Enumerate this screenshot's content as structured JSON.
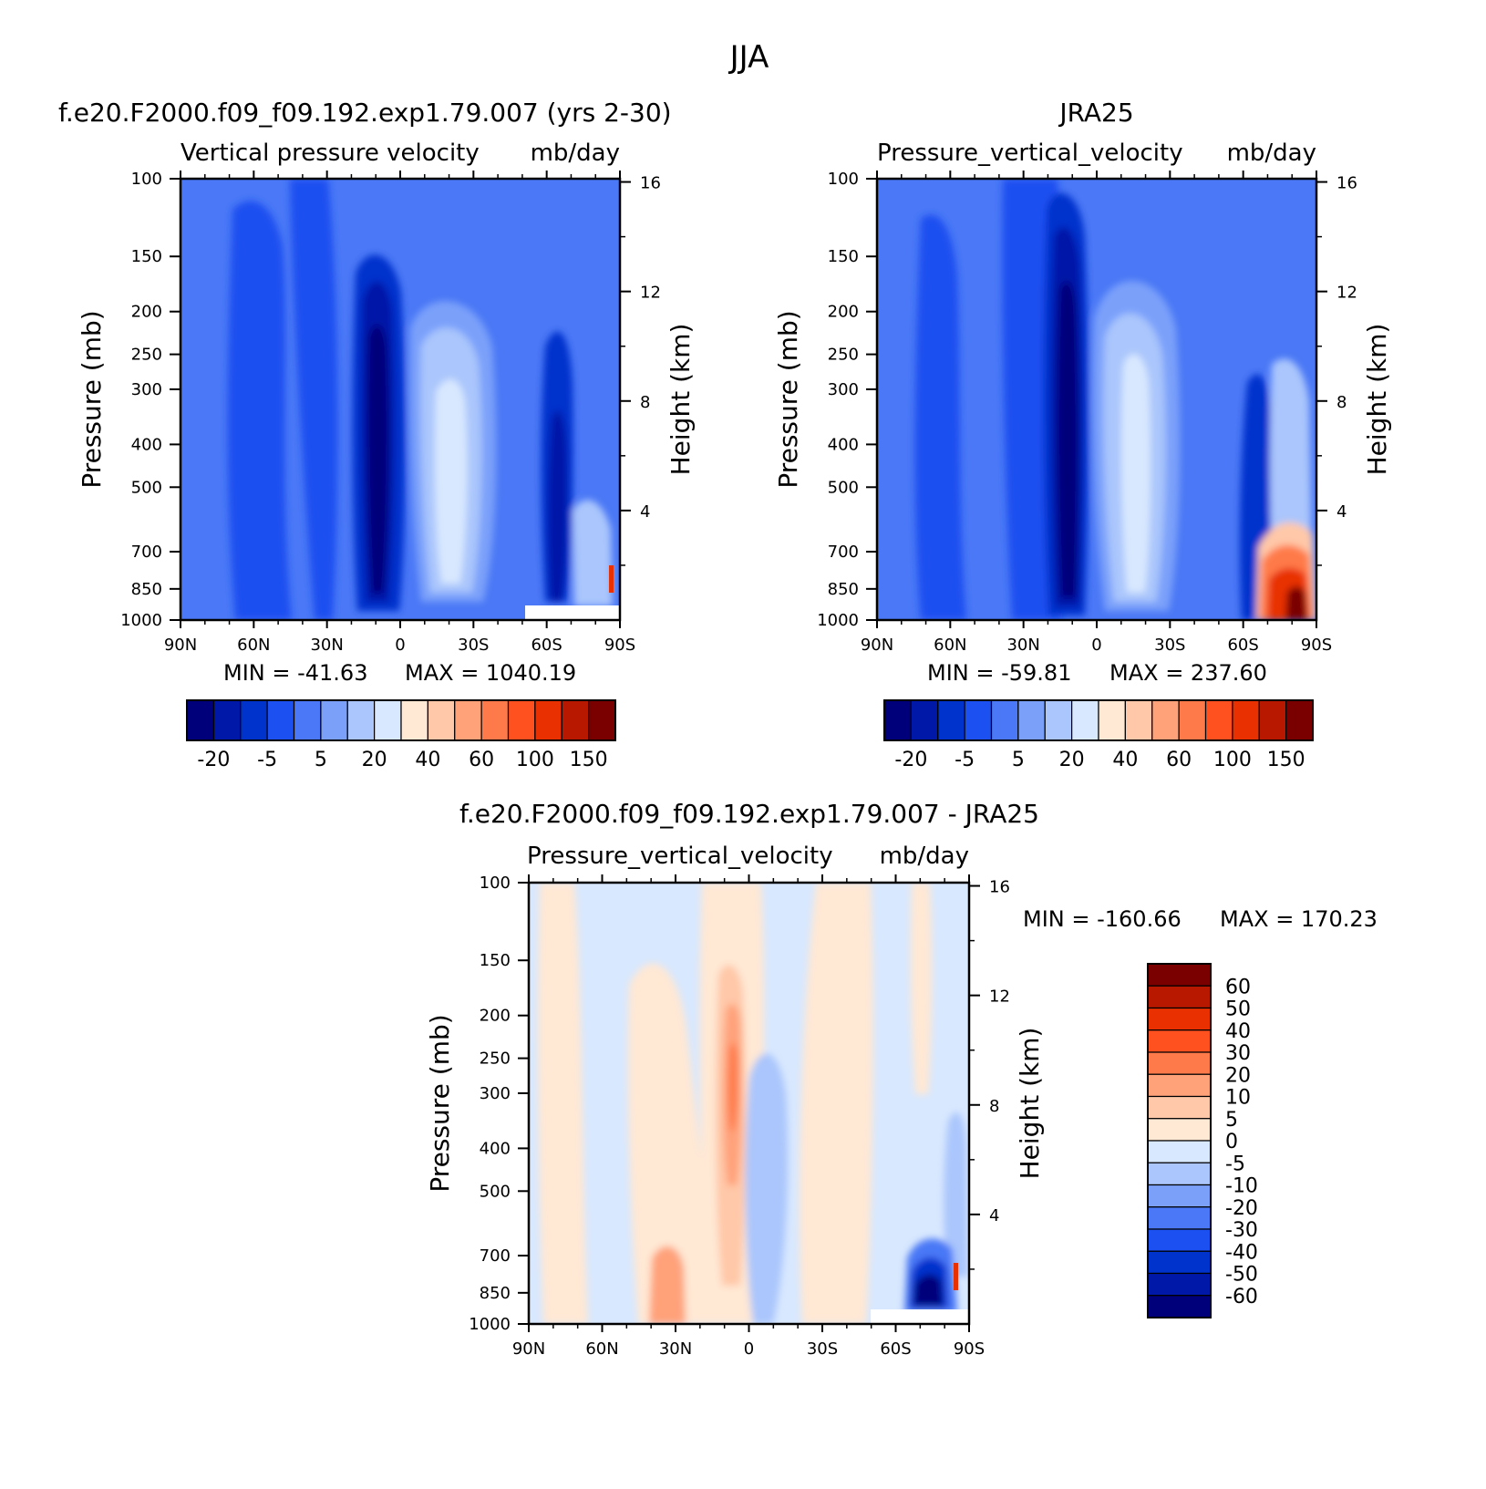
{
  "figure": {
    "season": "JJA"
  },
  "chart_data": [
    {
      "type": "heatmap",
      "name": "model",
      "case_title": "f.e20.F2000.f09_f09.192.exp1.79.007 (yrs 2-30)",
      "subtitle_left": "Vertical pressure velocity",
      "subtitle_units": "mb/day",
      "ylabel": "Pressure (mb)",
      "ylabel_right": "Height (km)",
      "x_ticks": [
        "90N",
        "60N",
        "30N",
        "0",
        "30S",
        "60S",
        "90S"
      ],
      "y_ticks": [
        100,
        150,
        200,
        250,
        300,
        400,
        500,
        700,
        850,
        1000
      ],
      "height_ticks": [
        16,
        12,
        8,
        4
      ],
      "xlim": [
        90,
        -90
      ],
      "ylim": [
        100,
        1000
      ],
      "y_scale": "log",
      "min_label": "MIN = -41.63",
      "max_label": "MAX = 1040.19",
      "colorbar": {
        "orientation": "horizontal",
        "colors": [
          "#00007a",
          "#0018a8",
          "#0032cc",
          "#1c50f0",
          "#4a78f6",
          "#7aa0fa",
          "#aac6fc",
          "#d8e8fe",
          "#ffe8d4",
          "#ffc8a8",
          "#ffa27a",
          "#ff7a4a",
          "#ff5020",
          "#e83000",
          "#b81800",
          "#7a0000"
        ],
        "tick_labels": [
          "-20",
          "-5",
          "5",
          "20",
          "40",
          "60",
          "100",
          "150"
        ]
      }
    },
    {
      "type": "heatmap",
      "name": "observations",
      "case_title": "JRA25",
      "subtitle_left": "Pressure_vertical_velocity",
      "subtitle_units": "mb/day",
      "ylabel": "Pressure (mb)",
      "ylabel_right": "Height (km)",
      "x_ticks": [
        "90N",
        "60N",
        "30N",
        "0",
        "30S",
        "60S",
        "90S"
      ],
      "y_ticks": [
        100,
        150,
        200,
        250,
        300,
        400,
        500,
        700,
        850,
        1000
      ],
      "height_ticks": [
        16,
        12,
        8,
        4
      ],
      "xlim": [
        90,
        -90
      ],
      "ylim": [
        100,
        1000
      ],
      "y_scale": "log",
      "min_label": "MIN = -59.81",
      "max_label": "MAX = 237.60",
      "colorbar": {
        "orientation": "horizontal",
        "colors": [
          "#00007a",
          "#0018a8",
          "#0032cc",
          "#1c50f0",
          "#4a78f6",
          "#7aa0fa",
          "#aac6fc",
          "#d8e8fe",
          "#ffe8d4",
          "#ffc8a8",
          "#ffa27a",
          "#ff7a4a",
          "#ff5020",
          "#e83000",
          "#b81800",
          "#7a0000"
        ],
        "tick_labels": [
          "-20",
          "-5",
          "5",
          "20",
          "40",
          "60",
          "100",
          "150"
        ]
      }
    },
    {
      "type": "heatmap",
      "name": "difference",
      "case_title": "f.e20.F2000.f09_f09.192.exp1.79.007 - JRA25",
      "subtitle_left": "Pressure_vertical_velocity",
      "subtitle_units": "mb/day",
      "ylabel": "Pressure (mb)",
      "ylabel_right": "Height (km)",
      "x_ticks": [
        "90N",
        "60N",
        "30N",
        "0",
        "30S",
        "60S",
        "90S"
      ],
      "y_ticks": [
        100,
        150,
        200,
        250,
        300,
        400,
        500,
        700,
        850,
        1000
      ],
      "height_ticks": [
        16,
        12,
        8,
        4
      ],
      "xlim": [
        90,
        -90
      ],
      "ylim": [
        100,
        1000
      ],
      "y_scale": "log",
      "min_label": "MIN = -160.66",
      "max_label": "MAX = 170.23",
      "colorbar": {
        "orientation": "vertical",
        "colors": [
          "#7a0000",
          "#b81800",
          "#e83000",
          "#ff5020",
          "#ff7a4a",
          "#ffa27a",
          "#ffc8a8",
          "#ffe8d4",
          "#d8e8fe",
          "#aac6fc",
          "#7aa0fa",
          "#4a78f6",
          "#1c50f0",
          "#0032cc",
          "#0018a8",
          "#00007a"
        ],
        "tick_labels": [
          "60",
          "50",
          "40",
          "30",
          "20",
          "10",
          "5",
          "0",
          "-5",
          "-10",
          "-20",
          "-30",
          "-40",
          "-50",
          "-60"
        ]
      }
    }
  ]
}
